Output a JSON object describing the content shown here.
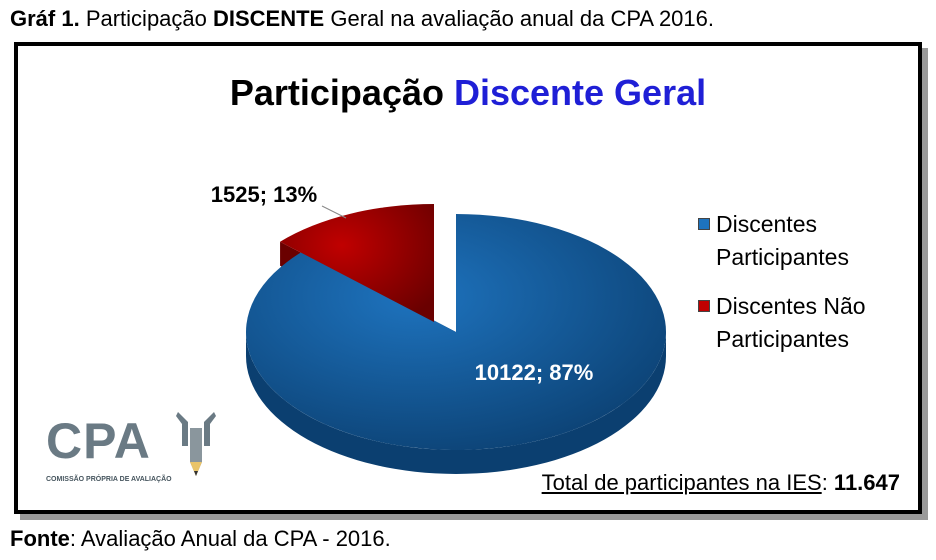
{
  "caption": {
    "prefix": "Gráf 1.",
    "text_a": " Participação ",
    "bold_word": "DISCENTE",
    "text_b": " Geral na avaliação anual da CPA 2016."
  },
  "source": {
    "label": "Fonte",
    "text": ": Avaliação Anual da CPA - 2016."
  },
  "logo": {
    "text": "CPA",
    "subtitle": "COMISSÃO PRÓPRIA DE AVALIAÇÃO"
  },
  "total": {
    "label": "Total de participantes na IES",
    "separator": ": ",
    "value": "11.647"
  },
  "colors": {
    "title_accent": "#1f1fd6",
    "participantes": "#1e73be",
    "nao_participantes": "#c00000"
  },
  "chart_data": {
    "type": "pie",
    "title_part1": "Participação ",
    "title_part2": "Discente Geral",
    "slices": [
      {
        "name": "Discentes Participantes",
        "value": 10122,
        "percent": 87,
        "label": "10122; 87%"
      },
      {
        "name": "Discentes Não Participantes",
        "value": 1525,
        "percent": 13,
        "label": "1525; 13%"
      }
    ],
    "legend": [
      "Discentes Participantes",
      "Discentes Não Participantes"
    ],
    "legend_position": "right",
    "style": "3d exploded"
  }
}
